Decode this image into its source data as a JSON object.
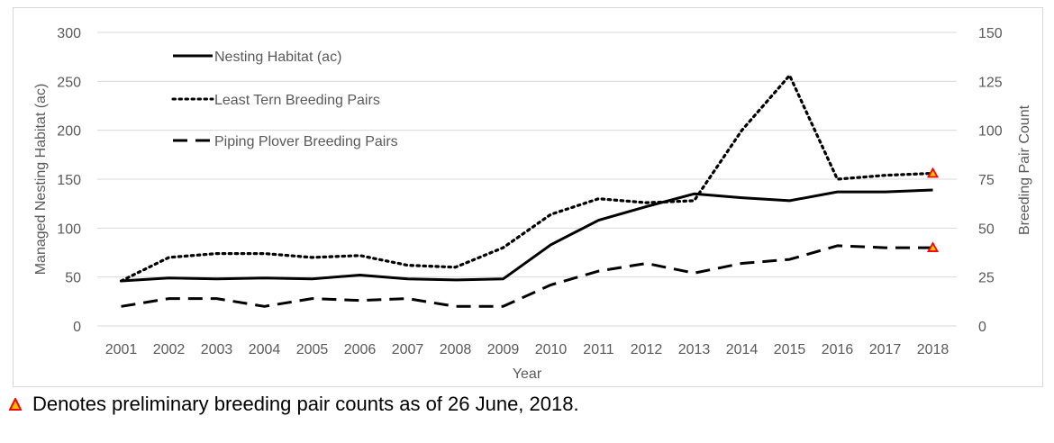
{
  "chart_data": {
    "type": "line",
    "title": "",
    "xlabel": "Year",
    "ylabel_left": "Managed Nesting Habitat (ac)",
    "ylabel_right": "Breeding Pair Count",
    "ylim_left": [
      0,
      300
    ],
    "ylim_right": [
      0,
      150
    ],
    "yticks_left": [
      "0",
      "50",
      "100",
      "150",
      "200",
      "250",
      "300"
    ],
    "yticks_right": [
      "0",
      "25",
      "50",
      "75",
      "100",
      "125",
      "150"
    ],
    "grid": true,
    "legend_position": "top-left",
    "categories": [
      "2001",
      "2002",
      "2003",
      "2004",
      "2005",
      "2006",
      "2007",
      "2008",
      "2009",
      "2010",
      "2011",
      "2012",
      "2013",
      "2014",
      "2015",
      "2016",
      "2017",
      "2018"
    ],
    "series": [
      {
        "name": "Nesting Habitat (ac)",
        "axis": "left",
        "style": "solid",
        "values": [
          46,
          49,
          48,
          49,
          48,
          52,
          48,
          47,
          48,
          83,
          108,
          122,
          135,
          131,
          128,
          137,
          137,
          139
        ]
      },
      {
        "name": "Least Tern Breeding Pairs",
        "axis": "right",
        "style": "dotted",
        "values": [
          23,
          35,
          37,
          37,
          35,
          36,
          31,
          30,
          40,
          57,
          65,
          63,
          64,
          100,
          128,
          75,
          77,
          78
        ]
      },
      {
        "name": "Piping Plover Breeding Pairs",
        "axis": "right",
        "style": "dashed",
        "values": [
          10,
          14,
          14,
          10,
          14,
          13,
          14,
          10,
          10,
          21,
          28,
          32,
          27,
          32,
          34,
          41,
          40,
          40
        ]
      }
    ],
    "preliminary_markers": [
      {
        "series": "Least Tern Breeding Pairs",
        "category": "2018",
        "value": 78
      },
      {
        "series": "Piping Plover Breeding Pairs",
        "category": "2018",
        "value": 40
      }
    ],
    "marker_color": "#ff0000",
    "marker_fill": "#ffc000"
  },
  "footnote": {
    "text": "Denotes preliminary breeding pair counts as of 26 June, 2018."
  }
}
